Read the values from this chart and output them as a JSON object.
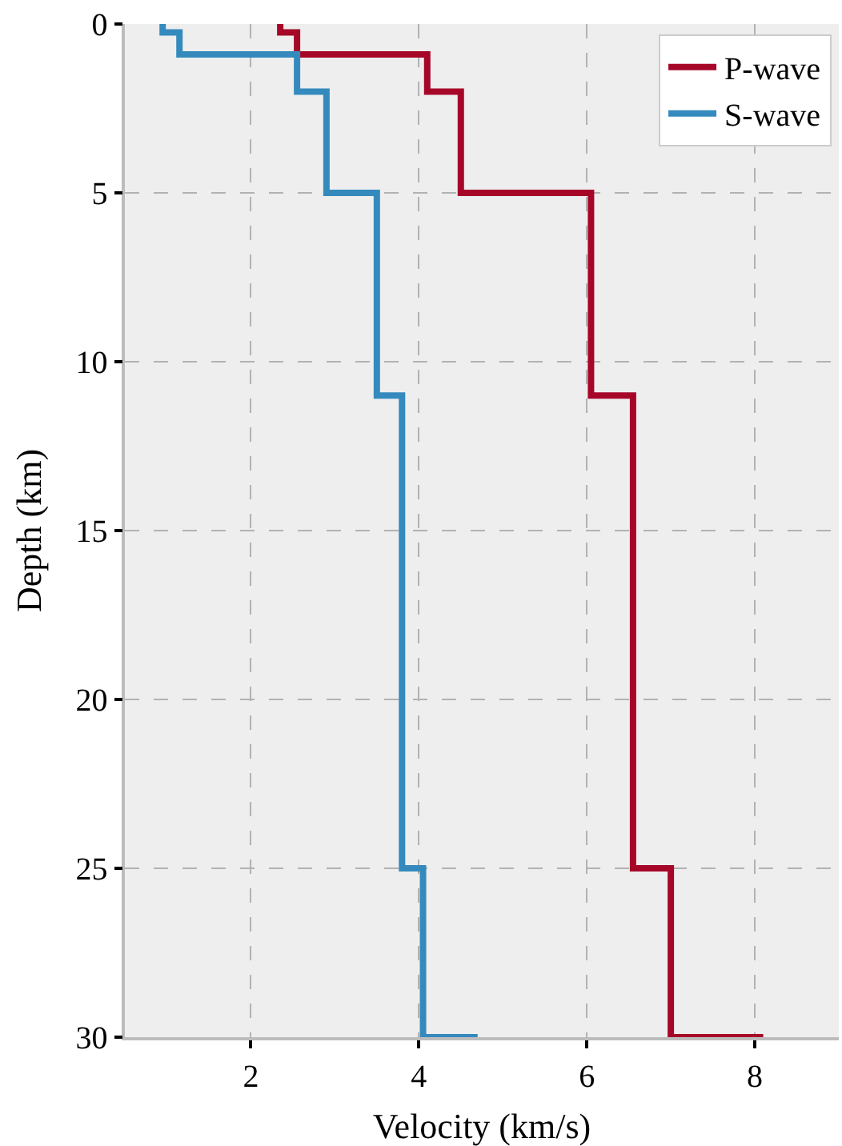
{
  "chart_data": {
    "type": "line",
    "xlabel": "Velocity (km/s)",
    "ylabel": "Depth (km)",
    "xlim": [
      0.5,
      9
    ],
    "xticks": [
      2,
      4,
      6,
      8
    ],
    "ylim": [
      30,
      0
    ],
    "yticks": [
      0,
      5,
      10,
      15,
      20,
      25,
      30
    ],
    "grid": true,
    "legend": "top right",
    "marker": "none",
    "line_style": "solid",
    "series": [
      {
        "name": "P-wave",
        "color": "#a60628",
        "x": [
          2.35,
          2.35,
          2.55,
          2.55,
          4.1,
          4.1,
          4.5,
          4.5,
          6.05,
          6.05,
          6.55,
          6.55,
          7.0,
          7.0,
          8.1
        ],
        "values": [
          0,
          0.25,
          0.25,
          0.9,
          0.9,
          2,
          2,
          5,
          5,
          11,
          11,
          25,
          25,
          30,
          30
        ]
      },
      {
        "name": "S-wave",
        "color": "#348abd",
        "x": [
          0.95,
          0.95,
          1.15,
          1.15,
          2.55,
          2.55,
          2.9,
          2.9,
          3.5,
          3.5,
          3.8,
          3.8,
          4.05,
          4.05,
          4.7
        ],
        "values": [
          0,
          0.25,
          0.25,
          0.9,
          0.9,
          2,
          2,
          5,
          5,
          11,
          11,
          25,
          25,
          30,
          30
        ]
      }
    ]
  }
}
